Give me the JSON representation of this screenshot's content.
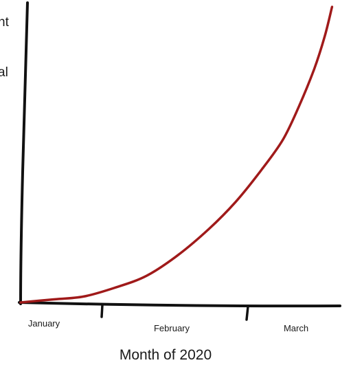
{
  "chart_data": {
    "type": "line",
    "title": "",
    "xlabel": "Month of 2020",
    "ylabel_fragments": [
      "nt",
      "al"
    ],
    "categories": [
      "January",
      "February",
      "March"
    ],
    "x_range": [
      0,
      3
    ],
    "y_range": [
      0,
      100
    ],
    "grid": false,
    "legend": "none",
    "colors": {
      "line": "#a01a1a",
      "axis": "#111111",
      "text": "#1a1a1a"
    },
    "series": [
      {
        "x": [
          0.0,
          0.3,
          0.6,
          0.9,
          1.2,
          1.5,
          1.8,
          2.05,
          2.3,
          2.5,
          2.65,
          2.8,
          2.9,
          2.97
        ],
        "y": [
          0,
          1,
          2,
          5,
          9,
          16,
          25,
          34,
          45,
          55,
          66,
          79,
          90,
          100
        ]
      }
    ]
  }
}
